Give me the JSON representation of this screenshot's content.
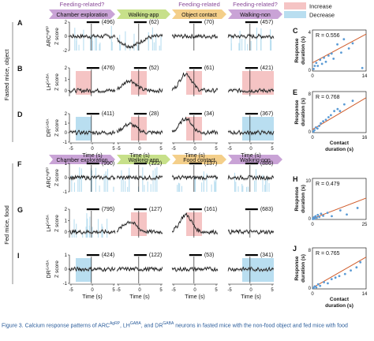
{
  "colors": {
    "chamber": "#c9a3d6",
    "walking": "#c7e08a",
    "contact": "#f4cf8a",
    "increase": "#f5c4c4",
    "decrease": "#b9def0",
    "trace": "#000000",
    "header_text": "#8a4b9a",
    "fit_line": "#d05c2a",
    "scatter_dot": "#5b9bd5",
    "caption": "#2a5c9a"
  },
  "legend": {
    "increase": "Increase",
    "decrease": "Decrease"
  },
  "panel_group_labels": {
    "top": "Fasted mice, object",
    "bottom": "Fed mice, food"
  },
  "headers": {
    "top": [
      {
        "top_label": "Feeding-related?",
        "label": "Chamber exploration",
        "color": "chamber"
      },
      {
        "top_label": "",
        "label": "Walking-app",
        "color": "walking"
      },
      {
        "top_label": "Feeding-related",
        "label": "Object contact",
        "color": "contact"
      },
      {
        "top_label": "Feeding-related?",
        "label": "Walking-non",
        "color": "chamber"
      }
    ],
    "bottom": [
      {
        "top_label": "",
        "label": "Chamber exploration",
        "color": "chamber"
      },
      {
        "top_label": "",
        "label": "Walking-app",
        "color": "walking"
      },
      {
        "top_label": "",
        "label": "Food contact",
        "color": "contact"
      },
      {
        "top_label": "",
        "label": "Walking-non",
        "color": "chamber"
      }
    ]
  },
  "rows": [
    {
      "letter": "A",
      "neuron": "ARC",
      "sup": "AgRP",
      "ylabel": "Z score",
      "counts": [
        "(496)",
        "(62)",
        "(70)",
        "(457)"
      ],
      "hi": 2,
      "lo": -2,
      "ticks": [
        {
          "v": 2,
          "t": "2"
        },
        {
          "v": 0,
          "t": "0"
        },
        {
          "v": -2,
          "t": "-2"
        }
      ],
      "patterns": [
        "flat",
        "dip",
        "flat",
        "flat"
      ],
      "shade": [
        null,
        null,
        null,
        null
      ],
      "stripes": [
        1,
        1,
        0,
        1
      ]
    },
    {
      "letter": "B",
      "neuron": "LH",
      "sup": "GABA",
      "ylabel": "Z score",
      "counts": [
        "(476)",
        "(52)",
        "(61)",
        "(421)"
      ],
      "hi": 2,
      "lo": -0.5,
      "ticks": [
        {
          "v": 2,
          "t": "2"
        },
        {
          "v": 1,
          "t": "1"
        },
        {
          "v": 0,
          "t": "0"
        }
      ],
      "patterns": [
        "flat",
        "hump",
        "peak",
        "flat"
      ],
      "shade": [
        "increase",
        "increase",
        "increase",
        "increase"
      ],
      "stripes": [
        0,
        0,
        0,
        0
      ]
    },
    {
      "letter": "D",
      "neuron": "DR",
      "sup": "GABA",
      "ylabel": "Z score",
      "counts": [
        "(411)",
        "(28)",
        "(34)",
        "(367)"
      ],
      "hi": 2,
      "lo": -1,
      "ticks": [
        {
          "v": 2,
          "t": "2"
        },
        {
          "v": 1,
          "t": "1"
        },
        {
          "v": 0,
          "t": "0"
        },
        {
          "v": -1,
          "t": "-1"
        }
      ],
      "patterns": [
        "flat",
        "hump",
        "peak",
        "flat"
      ],
      "shade": [
        "decrease",
        "increase",
        "increase",
        "decrease"
      ],
      "stripes": [
        0,
        0,
        0,
        0
      ]
    },
    {
      "letter": "F",
      "neuron": "ARC",
      "sup": "AgRP",
      "ylabel": "Z score",
      "counts": [
        "(990)",
        "(122)",
        "(137)",
        "(886)"
      ],
      "hi": 1,
      "lo": -1,
      "ticks": [
        {
          "v": 1,
          "t": "1"
        },
        {
          "v": 0,
          "t": "0"
        },
        {
          "v": -1,
          "t": "-1"
        }
      ],
      "patterns": [
        "flat",
        "flat",
        "flat",
        "flat"
      ],
      "shade": [
        null,
        null,
        null,
        null
      ],
      "stripes": [
        1,
        1,
        1,
        1
      ]
    },
    {
      "letter": "G",
      "neuron": "LH",
      "sup": "GABA",
      "ylabel": "Z score",
      "counts": [
        "(795)",
        "(127)",
        "(161)",
        "(683)"
      ],
      "hi": 2,
      "lo": -0.5,
      "ticks": [
        {
          "v": 2,
          "t": "2"
        },
        {
          "v": 1,
          "t": "1"
        },
        {
          "v": 0,
          "t": "0"
        }
      ],
      "patterns": [
        "flat",
        "hump",
        "peak",
        "flat"
      ],
      "shade": [
        null,
        "increase",
        "increase",
        null
      ],
      "stripes": [
        1,
        0,
        0,
        0
      ]
    },
    {
      "letter": "I",
      "neuron": "DR",
      "sup": "GABA",
      "ylabel": "Z score",
      "counts": [
        "(424)",
        "(122)",
        "(53)",
        "(341)"
      ],
      "hi": 1,
      "lo": -1,
      "ticks": [
        {
          "v": 1,
          "t": "1"
        },
        {
          "v": 0,
          "t": "0"
        },
        {
          "v": -1,
          "t": "-1"
        }
      ],
      "patterns": [
        "flat",
        "flat",
        "flat",
        "flat"
      ],
      "shade": [
        "decrease",
        null,
        null,
        "decrease"
      ],
      "stripes": [
        0,
        0,
        0,
        0
      ]
    }
  ],
  "time_axis": {
    "ticks": [
      "-5",
      "0",
      "5"
    ],
    "label": "Time (s)"
  },
  "scatter_letters": {
    "C": "C",
    "E": "E",
    "H": "H",
    "J": "J"
  },
  "scatter_axes": {
    "top_ylabel": "Response\nduration (s)",
    "top_xlabel": "Contact\nduration (s)",
    "bottom_ylabel": "Response\nduration (s)",
    "bottom_xlabel": "Contact\nduration (s)"
  },
  "chart_data": [
    {
      "type": "scatter",
      "panel": "C",
      "r_label": "R = 0.556",
      "xlim": [
        0,
        14
      ],
      "ylim": [
        0,
        4
      ],
      "xticks": [
        "0",
        "14"
      ],
      "yticks": [
        "0",
        "4"
      ],
      "x": [
        0.3,
        0.6,
        1,
        1.4,
        2,
        2.5,
        3,
        3.5,
        4.2,
        5,
        5.5,
        6.5,
        7.5,
        8.2,
        9.5,
        10.5,
        13
      ],
      "y": [
        0.2,
        0.5,
        0.8,
        0.5,
        1.1,
        0.7,
        1.3,
        0.9,
        1.5,
        1.7,
        1.2,
        2.6,
        1.8,
        3.1,
        2.2,
        2.7,
        0.3
      ],
      "fit": [
        [
          0,
          0.8
        ],
        [
          14,
          3.6
        ]
      ]
    },
    {
      "type": "scatter",
      "panel": "E",
      "r_label": "R = 0.768",
      "xlim": [
        0,
        16
      ],
      "ylim": [
        0,
        8
      ],
      "xticks": [
        "0",
        "16"
      ],
      "yticks": [
        "0",
        "8"
      ],
      "x": [
        0.3,
        0.6,
        1,
        1.5,
        2,
        2.5,
        3.2,
        4,
        4.8,
        5.5,
        6.5,
        7.5,
        8.2,
        9.5,
        12
      ],
      "y": [
        0.2,
        0.5,
        1,
        0.8,
        1.3,
        1.8,
        2.2,
        2.5,
        3,
        3.4,
        4.2,
        4.6,
        4.2,
        5.5,
        6.2
      ],
      "fit": [
        [
          0,
          0.6
        ],
        [
          16,
          6.8
        ]
      ]
    },
    {
      "type": "scatter",
      "panel": "H",
      "r_label": "R = 0.479",
      "xlim": [
        0,
        25
      ],
      "ylim": [
        0,
        10
      ],
      "xticks": [
        "0",
        "25"
      ],
      "yticks": [
        "0",
        "10"
      ],
      "x": [
        0.2,
        0.4,
        0.7,
        1,
        1.4,
        2,
        2.5,
        3.2,
        4,
        5,
        7,
        9,
        13,
        16,
        21
      ],
      "y": [
        0.1,
        0.3,
        0.5,
        0.2,
        0.8,
        0.4,
        1.1,
        0.6,
        1.4,
        0.9,
        1.6,
        0.8,
        2.2,
        1.2,
        2.8
      ],
      "fit": [
        [
          0,
          0.2
        ],
        [
          25,
          5.2
        ]
      ]
    },
    {
      "type": "scatter",
      "panel": "J",
      "r_label": "R = 0.765",
      "xlim": [
        0,
        14
      ],
      "ylim": [
        0,
        8
      ],
      "xticks": [
        "0",
        "14"
      ],
      "yticks": [
        "0",
        "8"
      ],
      "x": [
        0.3,
        0.6,
        1,
        1.5,
        2,
        3,
        4,
        5,
        6,
        7,
        8.5,
        10,
        11.5,
        12.5
      ],
      "y": [
        0.2,
        0.5,
        0.3,
        0.9,
        0.6,
        1.3,
        1.1,
        1.9,
        2.2,
        2.5,
        2.9,
        3.6,
        4.2,
        5.2
      ],
      "fit": [
        [
          0,
          0.2
        ],
        [
          14,
          6.2
        ]
      ]
    }
  ],
  "caption": {
    "p1": "Figure 3. Calcium response patterns of ARC",
    "s1": "AgRP",
    "p2": ", LH",
    "s2": "GABA",
    "p3": ", and DR",
    "s3": "GABA",
    "p4": " neurons in fasted mice with the non-food object and fed mice with food"
  }
}
